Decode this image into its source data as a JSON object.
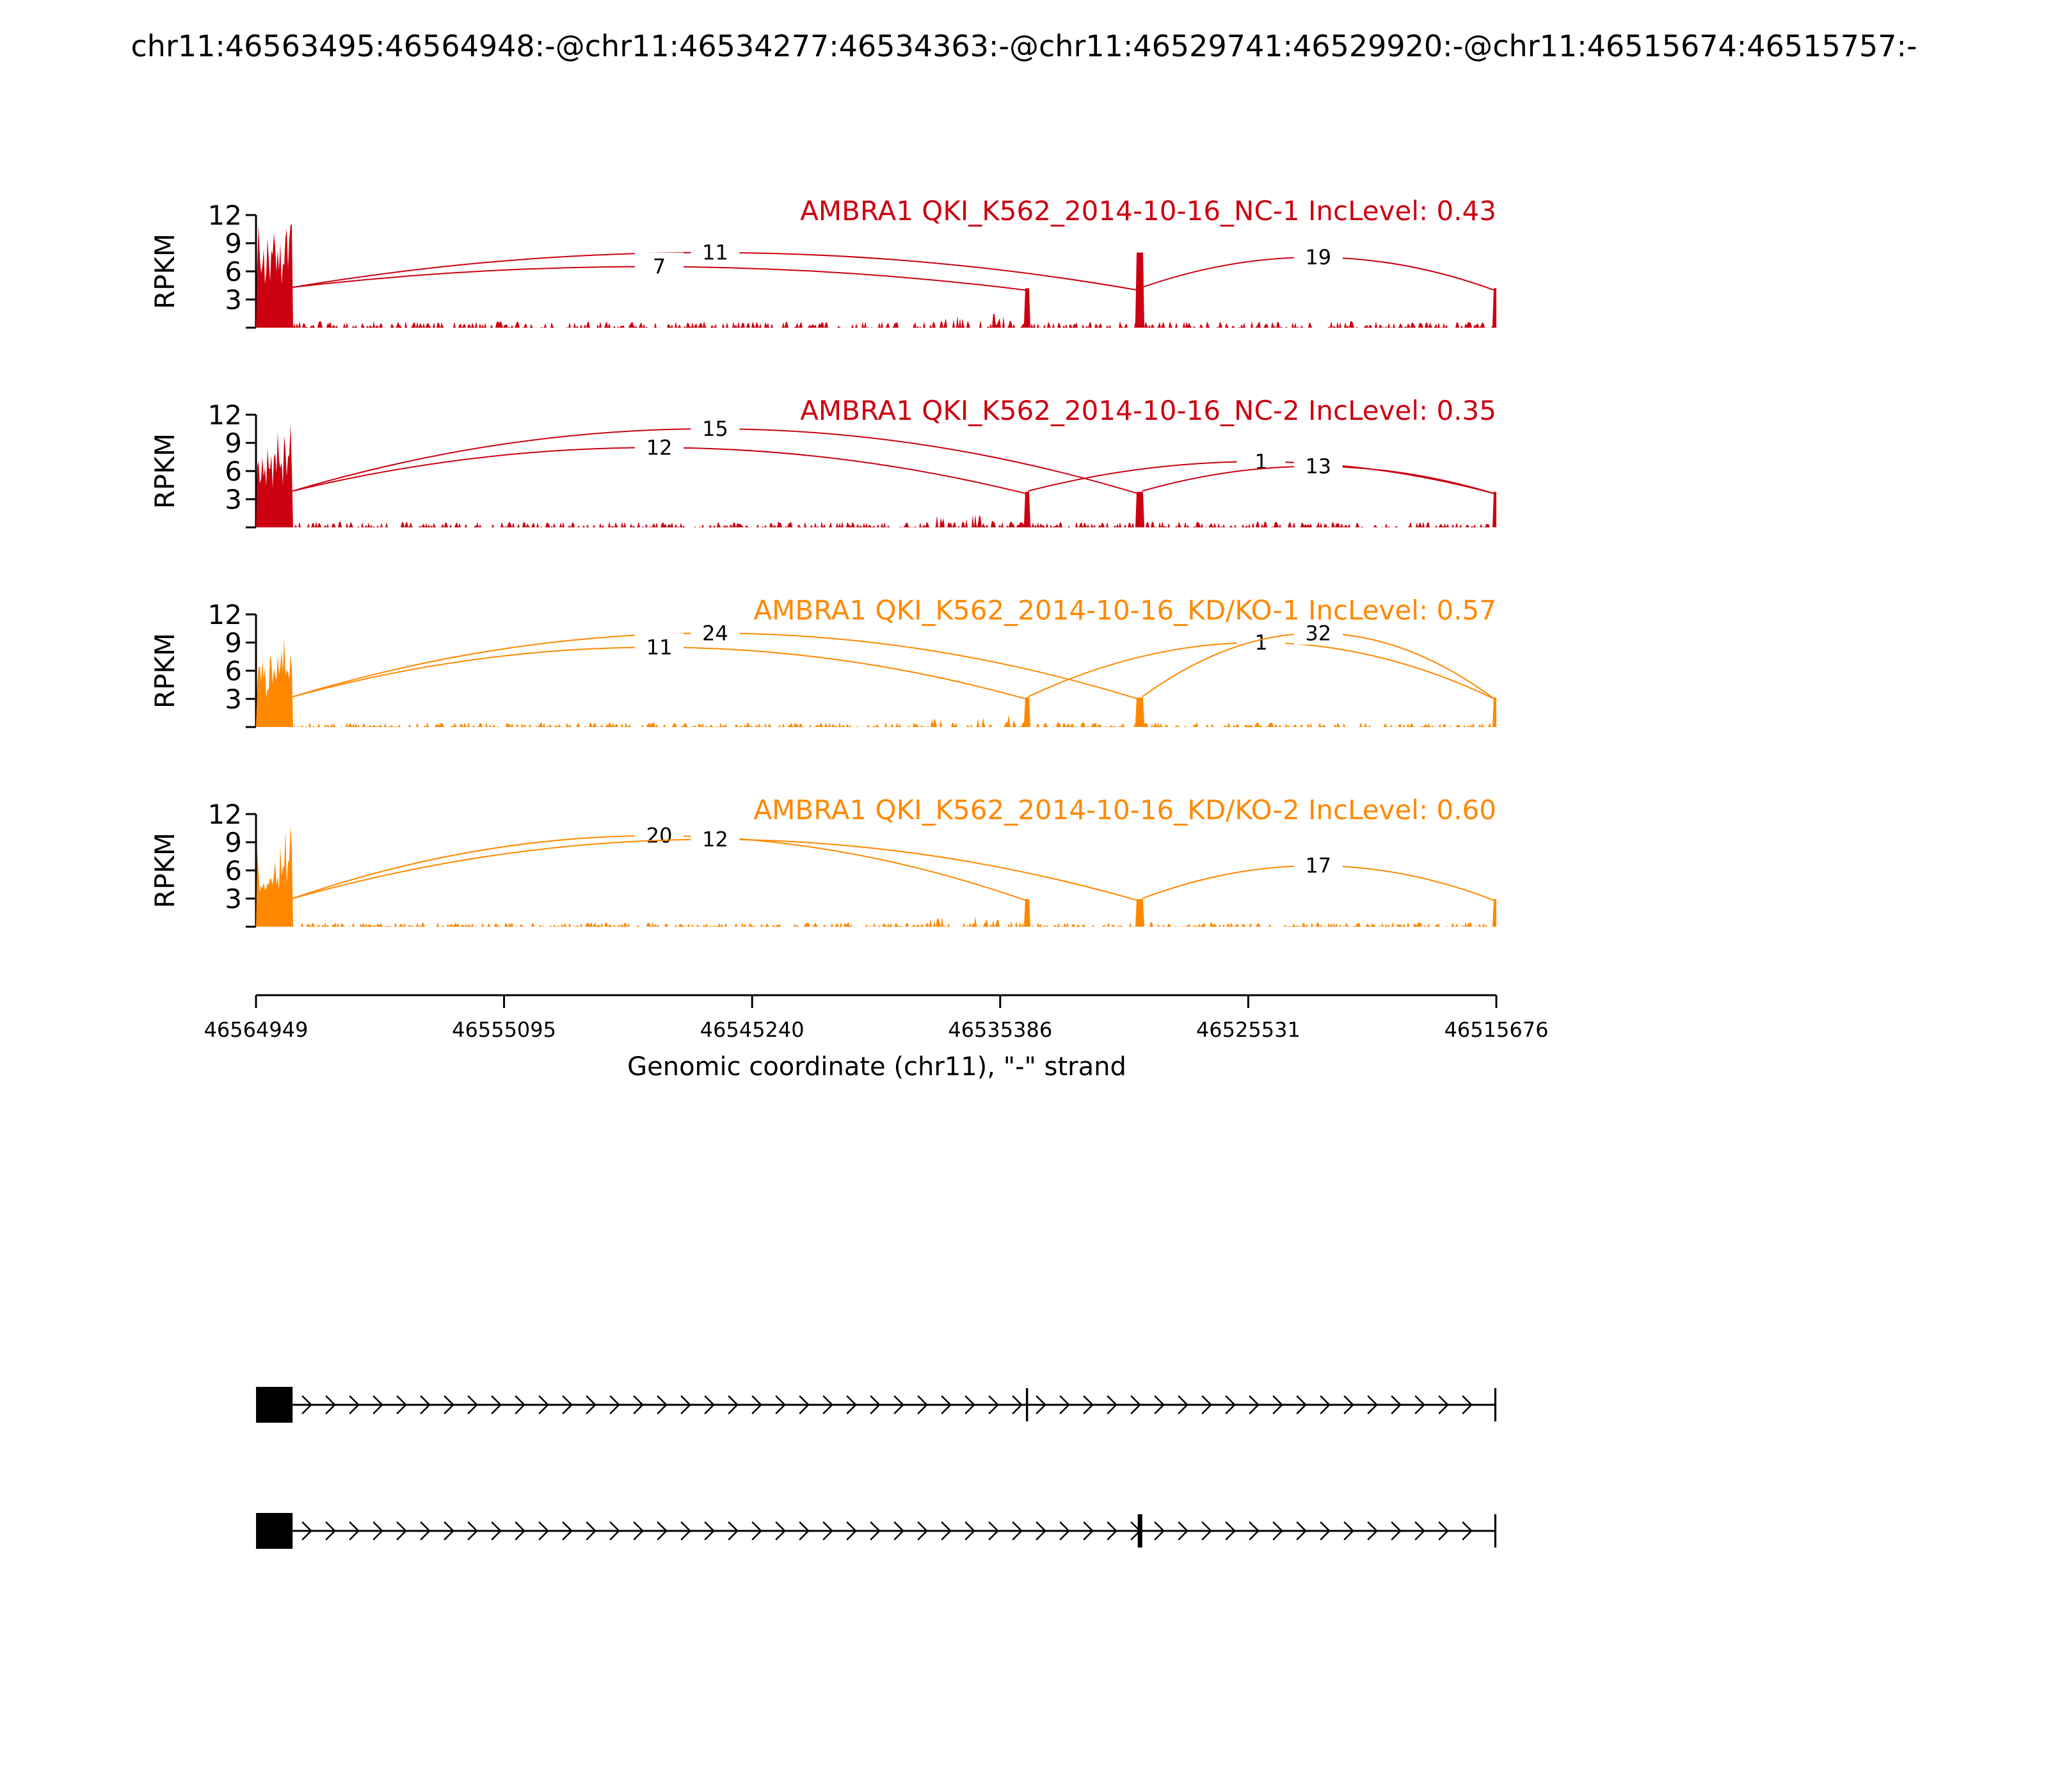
{
  "chart_data": {
    "type": "sashimi",
    "title": "chr11:46563495:46564948:-@chr11:46534277:46534363:-@chr11:46529741:46529920:-@chr11:46515674:46515757:-",
    "xlabel": "Genomic coordinate (chr11), \"-\" strand",
    "ylabel": "RPKM",
    "xlim": [
      46564949,
      46515676
    ],
    "x_ticks": [
      "46564949",
      "46555095",
      "46545240",
      "46535386",
      "46525531",
      "46515676"
    ],
    "ylim": [
      0,
      12
    ],
    "y_ticks": [
      "3",
      "6",
      "9",
      "12"
    ],
    "exons": [
      {
        "start": 46564948,
        "end": 46563495
      },
      {
        "start": 46534363,
        "end": 46534277
      },
      {
        "start": 46529920,
        "end": 46529741
      },
      {
        "start": 46515757,
        "end": 46515674
      }
    ],
    "samples": [
      {
        "label": "AMBRA1 QKI_K562_2014-10-16_NC-1 IncLevel: 0.43",
        "color": "#cc0011",
        "coverage_scale": 1.0,
        "junctions": [
          {
            "from": 46563495,
            "to": 46529920,
            "count": "11",
            "height": 8.0
          },
          {
            "from": 46563495,
            "to": 46534363,
            "count": "7",
            "height": 6.5
          },
          {
            "from": 46529741,
            "to": 46515757,
            "count": "19",
            "height": 7.5
          }
        ]
      },
      {
        "label": "AMBRA1 QKI_K562_2014-10-16_NC-2 IncLevel: 0.35",
        "color": "#cc0011",
        "coverage_scale": 0.9,
        "junctions": [
          {
            "from": 46563495,
            "to": 46529920,
            "count": "15",
            "height": 10.5
          },
          {
            "from": 46563495,
            "to": 46534363,
            "count": "12",
            "height": 8.5
          },
          {
            "from": 46534277,
            "to": 46515757,
            "count": "1",
            "height": 7.0
          },
          {
            "from": 46529741,
            "to": 46515757,
            "count": "13",
            "height": 6.5
          }
        ]
      },
      {
        "label": "AMBRA1 QKI_K562_2014-10-16_KD/KO-1 IncLevel: 0.57",
        "color": "#ff8800",
        "coverage_scale": 0.75,
        "junctions": [
          {
            "from": 46563495,
            "to": 46529920,
            "count": "24",
            "height": 10.0
          },
          {
            "from": 46563495,
            "to": 46534363,
            "count": "11",
            "height": 8.5
          },
          {
            "from": 46534277,
            "to": 46515757,
            "count": "1",
            "height": 9.0
          },
          {
            "from": 46529741,
            "to": 46515757,
            "count": "32",
            "height": 10.0
          }
        ]
      },
      {
        "label": "AMBRA1 QKI_K562_2014-10-16_KD/KO-2 IncLevel: 0.60",
        "color": "#ff8800",
        "coverage_scale": 0.7,
        "junctions": [
          {
            "from": 46563495,
            "to": 46534363,
            "count": "20",
            "height": 9.7
          },
          {
            "from": 46563495,
            "to": 46529920,
            "count": "12",
            "height": 9.3
          },
          {
            "from": 46529741,
            "to": 46515757,
            "count": "17",
            "height": 6.5
          }
        ]
      }
    ],
    "isoforms": [
      {
        "exons": [
          0,
          1,
          3
        ]
      },
      {
        "exons": [
          0,
          2,
          3
        ]
      }
    ]
  }
}
